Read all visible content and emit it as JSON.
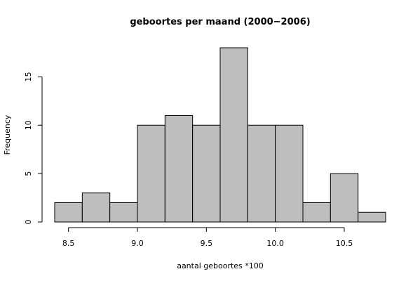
{
  "chart_data": {
    "type": "bar",
    "title": "geboortes per maand (2000−2006)",
    "xlabel": "aantal geboortes *100",
    "ylabel": "Frequency",
    "bin_edges": [
      8.4,
      8.6,
      8.8,
      9.0,
      9.2,
      9.4,
      9.6,
      9.8,
      10.0,
      10.2,
      10.4,
      10.6,
      10.8
    ],
    "values": [
      2,
      3,
      2,
      10,
      11,
      10,
      18,
      10,
      10,
      2,
      5,
      1
    ],
    "xlim": [
      8.4,
      10.8
    ],
    "ylim": [
      0,
      18
    ],
    "x_ticks": [
      8.5,
      9.0,
      9.5,
      10.0,
      10.5
    ],
    "x_tick_labels": [
      "8.5",
      "9.0",
      "9.5",
      "10.0",
      "10.5"
    ],
    "y_ticks": [
      0,
      5,
      10,
      15
    ],
    "y_tick_labels": [
      "0",
      "5",
      "10",
      "15"
    ],
    "bar_color": "#bebebe",
    "grid": false
  }
}
